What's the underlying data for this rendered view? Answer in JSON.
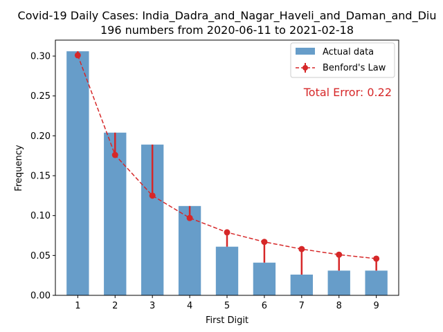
{
  "chart_data": {
    "type": "bar",
    "title": "Covid-19 Daily Cases: India_Dadra_and_Nagar_Haveli_and_Daman_and_Diu",
    "subtitle": "196 numbers from 2020-06-11 to 2021-02-18",
    "xlabel": "First Digit",
    "ylabel": "Frequency",
    "categories": [
      "1",
      "2",
      "3",
      "4",
      "5",
      "6",
      "7",
      "8",
      "9"
    ],
    "ylim": [
      0,
      0.32
    ],
    "yticks": [
      "0.00",
      "0.05",
      "0.10",
      "0.15",
      "0.20",
      "0.25",
      "0.30"
    ],
    "series": [
      {
        "name": "Actual data",
        "type": "bar",
        "color": "#4c8cbf",
        "values": [
          0.306,
          0.204,
          0.189,
          0.112,
          0.061,
          0.041,
          0.026,
          0.031,
          0.031
        ]
      },
      {
        "name": "Benford's Law",
        "type": "line",
        "style": "dashed",
        "marker": "circle",
        "color": "#d62728",
        "values": [
          0.301,
          0.176,
          0.125,
          0.097,
          0.079,
          0.067,
          0.058,
          0.051,
          0.046
        ]
      }
    ],
    "legend_position": "top-right",
    "annotation": {
      "text": "Total Error: 0.22",
      "color": "#d62728",
      "position": "top-right"
    },
    "grid": false
  }
}
